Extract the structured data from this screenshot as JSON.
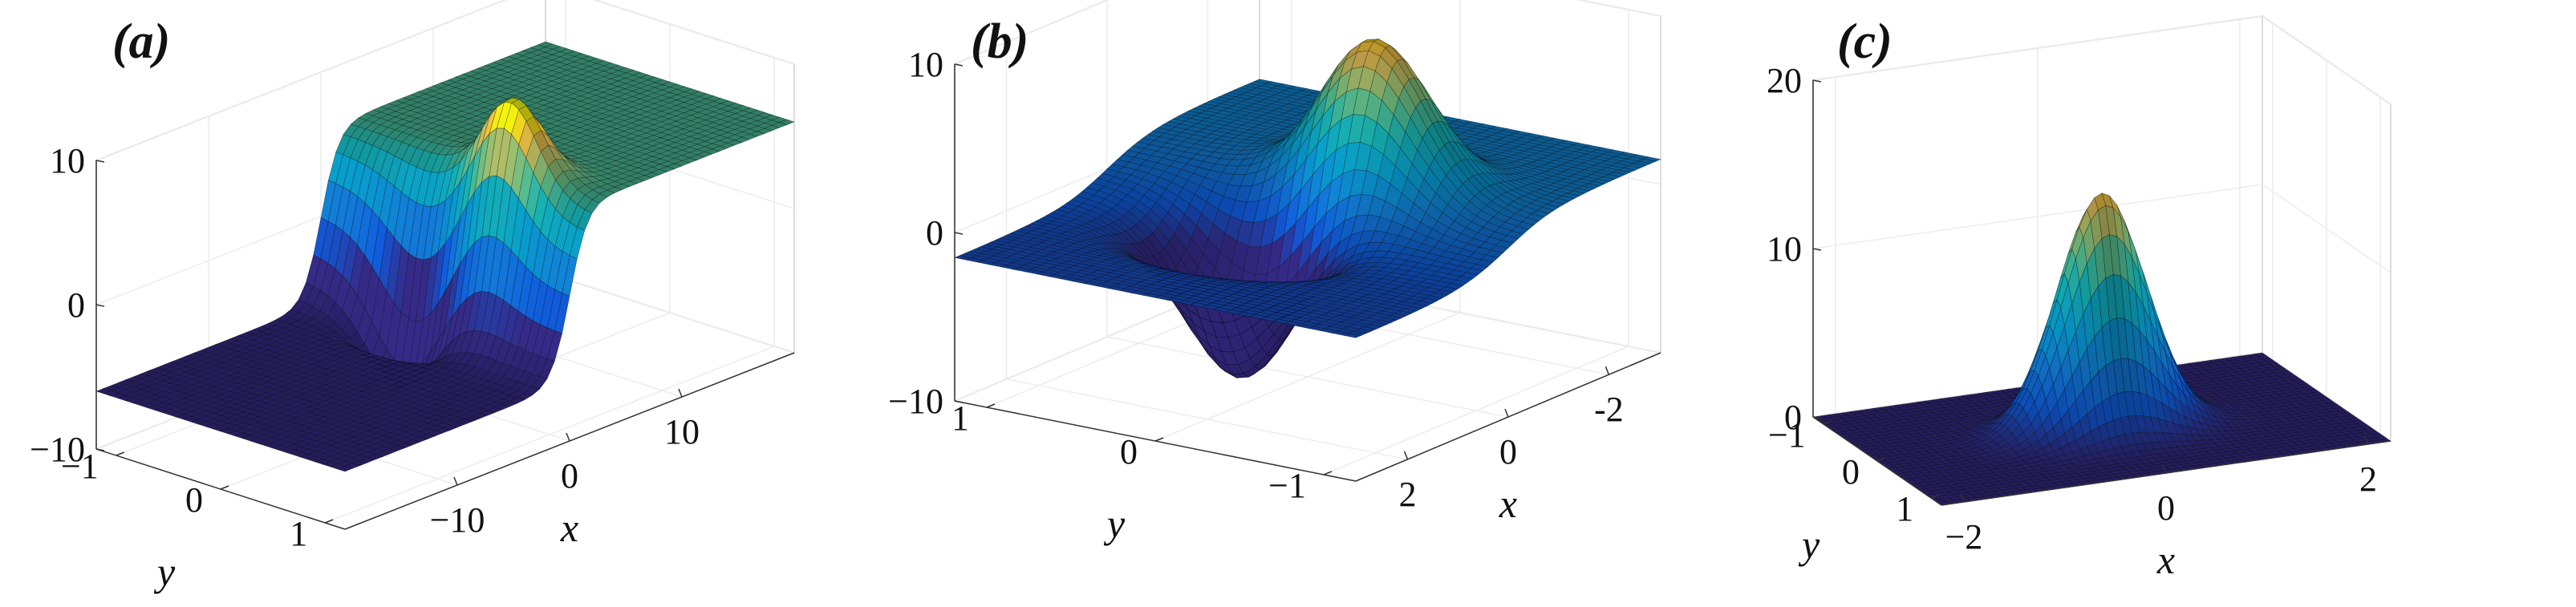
{
  "chart_data": [
    {
      "panel_label": "(a)",
      "type": "surface",
      "xlabel": "x",
      "ylabel": "y",
      "x_ticks": [
        "−10",
        "0",
        "10"
      ],
      "y_ticks": [
        "−1",
        "0",
        "1"
      ],
      "z_ticks": [
        "−10",
        "0",
        "10"
      ],
      "xlim": [
        -15,
        15
      ],
      "ylim": [
        -1.2,
        1.2
      ],
      "zlim": [
        -10,
        10
      ],
      "description_shape": "kink front along x with a localized hump"
    },
    {
      "panel_label": "(b)",
      "type": "surface",
      "xlabel": "x",
      "ylabel": "y",
      "x_ticks": [
        "2",
        "0",
        "-2"
      ],
      "y_ticks": [
        "1",
        "0",
        "−1"
      ],
      "z_ticks": [
        "−10",
        "0",
        "10"
      ],
      "xlim": [
        -3,
        3
      ],
      "ylim": [
        -1.2,
        1.2
      ],
      "zlim": [
        -10,
        10
      ],
      "description_shape": "dipole: one peak and one trough"
    },
    {
      "panel_label": "(c)",
      "type": "surface",
      "xlabel": "x",
      "ylabel": "y",
      "x_ticks": [
        "−2",
        "0",
        "2"
      ],
      "y_ticks": [
        "−1",
        "0",
        "1"
      ],
      "z_ticks": [
        "0",
        "10",
        "20"
      ],
      "xlim": [
        -2.2,
        2.2
      ],
      "ylim": [
        -1.2,
        1.2
      ],
      "zlim": [
        0,
        20
      ],
      "description_shape": "single localized peak"
    }
  ]
}
